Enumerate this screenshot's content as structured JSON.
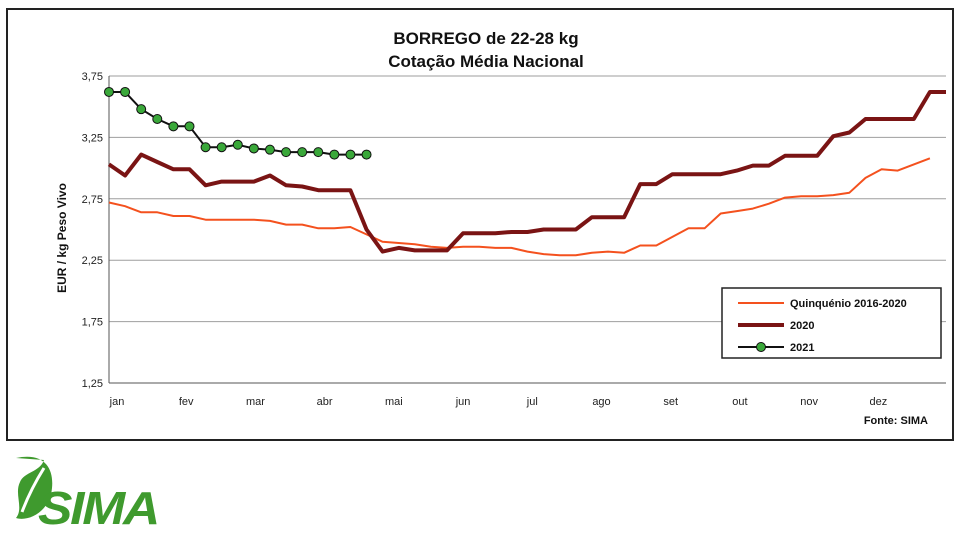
{
  "chart_data": {
    "type": "line",
    "title": "BORREGO de 22-28 kg",
    "subtitle": "Cotação Média Nacional",
    "xlabel": "",
    "ylabel": "EUR / kg Peso Vivo",
    "ylim": [
      1.25,
      3.75
    ],
    "yticks": [
      "3,75",
      "3,25",
      "2,75",
      "2,25",
      "1,75",
      "1,25"
    ],
    "ytick_values": [
      3.75,
      3.25,
      2.75,
      2.25,
      1.75,
      1.25
    ],
    "x_categories": [
      "jan",
      "fev",
      "mar",
      "abr",
      "mai",
      "jun",
      "jul",
      "ago",
      "set",
      "out",
      "nov",
      "dez"
    ],
    "x_tick_weeks": [
      1,
      5.3,
      9.6,
      13.9,
      18.2,
      22.5,
      26.8,
      31.1,
      35.4,
      39.7,
      44,
      48.3
    ],
    "x_range_weeks": [
      1,
      53
    ],
    "grid": "horizontal",
    "legend_position": "bottom-right",
    "source": "Fonte: SIMA",
    "series": [
      {
        "name": "Quinquénio 2016-2020",
        "color": "#f4511e",
        "style": "thin",
        "weeks": [
          1,
          2,
          3,
          4,
          5,
          6,
          7,
          8,
          9,
          10,
          11,
          12,
          13,
          14,
          15,
          16,
          17,
          18,
          19,
          20,
          21,
          22,
          23,
          24,
          25,
          26,
          27,
          28,
          29,
          30,
          31,
          32,
          33,
          34,
          35,
          36,
          37,
          38,
          39,
          40,
          41,
          42,
          43,
          44,
          45,
          46,
          47,
          48,
          49,
          50,
          51,
          52
        ],
        "values": [
          2.72,
          2.69,
          2.64,
          2.64,
          2.61,
          2.61,
          2.58,
          2.58,
          2.58,
          2.58,
          2.57,
          2.54,
          2.54,
          2.51,
          2.51,
          2.52,
          2.46,
          2.4,
          2.39,
          2.38,
          2.36,
          2.35,
          2.36,
          2.36,
          2.35,
          2.35,
          2.32,
          2.3,
          2.29,
          2.29,
          2.31,
          2.32,
          2.31,
          2.37,
          2.37,
          2.44,
          2.51,
          2.51,
          2.63,
          2.65,
          2.67,
          2.71,
          2.76,
          2.77,
          2.77,
          2.78,
          2.8,
          2.92,
          2.99,
          2.98,
          3.03,
          3.08
        ]
      },
      {
        "name": "2020",
        "color": "#7a1414",
        "style": "thick",
        "weeks": [
          1,
          2,
          3,
          4,
          5,
          6,
          7,
          8,
          9,
          10,
          11,
          12,
          13,
          14,
          15,
          16,
          17,
          18,
          19,
          20,
          21,
          22,
          23,
          24,
          25,
          26,
          27,
          28,
          29,
          30,
          31,
          32,
          33,
          34,
          35,
          36,
          37,
          38,
          39,
          40,
          41,
          42,
          43,
          44,
          45,
          46,
          47,
          48,
          49,
          50,
          51,
          52,
          53
        ],
        "values": [
          3.03,
          2.94,
          3.11,
          3.05,
          2.99,
          2.99,
          2.86,
          2.89,
          2.89,
          2.89,
          2.94,
          2.86,
          2.85,
          2.82,
          2.82,
          2.82,
          2.5,
          2.32,
          2.35,
          2.33,
          2.33,
          2.33,
          2.47,
          2.47,
          2.47,
          2.48,
          2.48,
          2.5,
          2.5,
          2.5,
          2.6,
          2.6,
          2.6,
          2.87,
          2.87,
          2.95,
          2.95,
          2.95,
          2.95,
          2.98,
          3.02,
          3.02,
          3.1,
          3.1,
          3.1,
          3.26,
          3.29,
          3.4,
          3.4,
          3.4,
          3.4,
          3.62,
          3.62
        ]
      },
      {
        "name": "2021",
        "color": "#111111",
        "marker_color": "#3aa83a",
        "style": "marker",
        "weeks": [
          1,
          2,
          3,
          4,
          5,
          6,
          7,
          8,
          9,
          10,
          11,
          12,
          13,
          14,
          15,
          16,
          17
        ],
        "values": [
          3.62,
          3.62,
          3.48,
          3.4,
          3.34,
          3.34,
          3.17,
          3.17,
          3.19,
          3.16,
          3.15,
          3.13,
          3.13,
          3.13,
          3.11,
          3.11,
          3.11
        ]
      }
    ]
  },
  "logo": {
    "text": "SIMA",
    "color": "#3f9a2e"
  }
}
